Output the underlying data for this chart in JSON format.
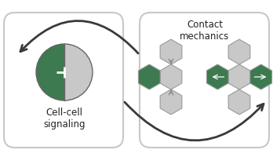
{
  "bg_color": "#ffffff",
  "dark_green": "#3d7a4f",
  "light_gray": "#c8c8c8",
  "arrow_color": "#3a3a3a",
  "text_color": "#222222",
  "box_edge_color": "#c8c8c8",
  "label_left": "Cell-cell\nsignaling",
  "label_right": "Contact\nmechanics",
  "font_size": 8.5,
  "hex_edge_color": "#999999",
  "cell_edge_color": "#666666"
}
